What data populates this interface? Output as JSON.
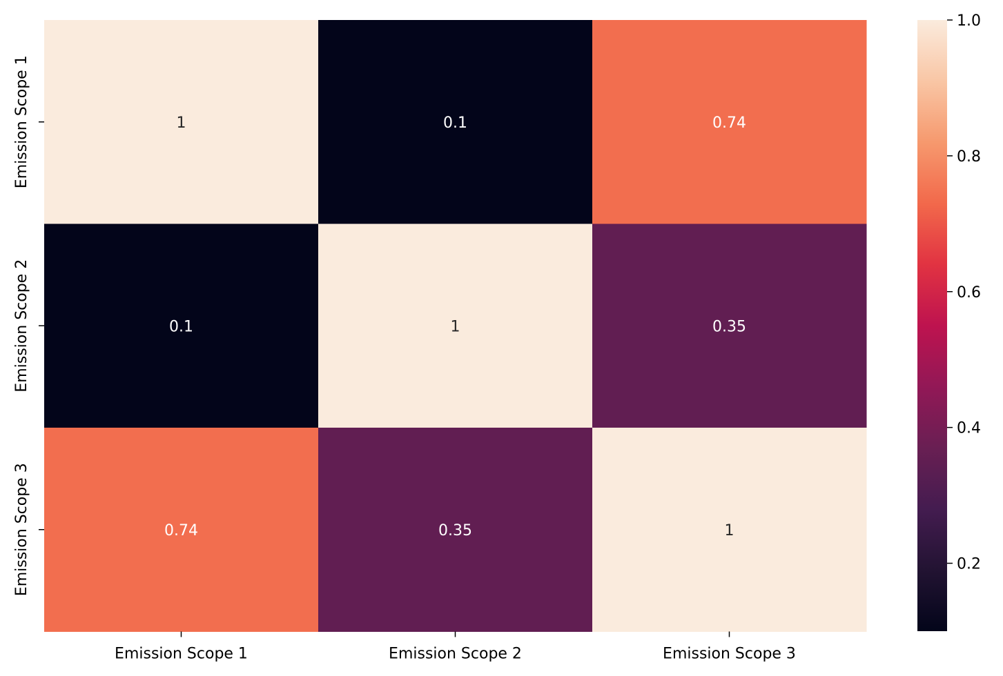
{
  "chart_data": {
    "type": "heatmap",
    "title": "",
    "xlabel": "",
    "ylabel": "",
    "x_categories": [
      "Emission Scope 1",
      "Emission Scope 2",
      "Emission Scope 3"
    ],
    "y_categories": [
      "Emission Scope 1",
      "Emission Scope 2",
      "Emission Scope 3"
    ],
    "values": [
      [
        1,
        0.1,
        0.74
      ],
      [
        0.1,
        1,
        0.35
      ],
      [
        0.74,
        0.35,
        1
      ]
    ],
    "cell_labels": [
      [
        "1",
        "0.1",
        "0.74"
      ],
      [
        "0.1",
        "1",
        "0.35"
      ],
      [
        "0.74",
        "0.35",
        "1"
      ]
    ],
    "colorscale": "rocket",
    "colorbar": {
      "range": [
        0.1,
        1.0
      ],
      "ticks": [
        0.2,
        0.4,
        0.6,
        0.8,
        1.0
      ],
      "tick_labels": [
        "0.2",
        "0.4",
        "0.6",
        "0.8",
        "1.0"
      ]
    },
    "grid": false,
    "colorbar_placement": "right"
  }
}
